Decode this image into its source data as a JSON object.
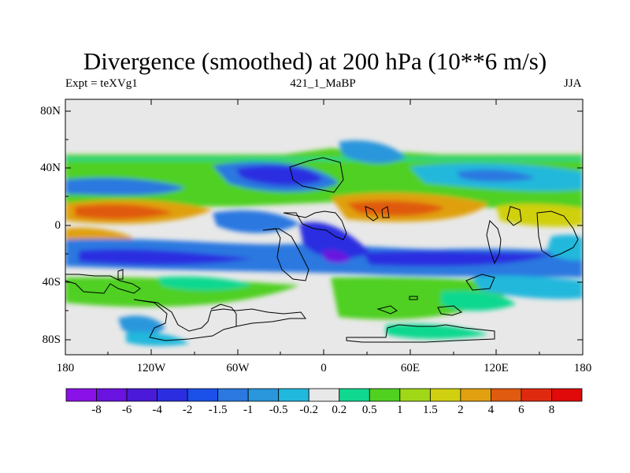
{
  "header": {
    "title": "Divergence (smoothed) at 200 hPa (10**6 m/s)",
    "left_label": "Expt = teXVg1",
    "center_label": "421_1_MaBP",
    "right_label": "JJA"
  },
  "map": {
    "lat_labels": [
      "80N",
      "40N",
      "0",
      "40S",
      "80S"
    ],
    "lon_labels": [
      "180",
      "120W",
      "60W",
      "0",
      "60E",
      "120E",
      "180"
    ]
  },
  "colorbar": {
    "labels": [
      "-8",
      "-6",
      "-4",
      "-2",
      "-1.5",
      "-1",
      "-0.5",
      "-0.2",
      "0.2",
      "0.5",
      "1",
      "1.5",
      "2",
      "4",
      "6",
      "8"
    ],
    "colors": [
      "#8a12e8",
      "#6a12e0",
      "#4a1ad8",
      "#2a2ee0",
      "#1a50e8",
      "#2a78e0",
      "#2a96dc",
      "#20b8dc",
      "#e8e8e8",
      "#10d890",
      "#50d020",
      "#a0d818",
      "#d0d010",
      "#e0a010",
      "#e05a10",
      "#e02a10",
      "#e00a0a"
    ]
  },
  "palette": {
    "background": "#e8e8e8",
    "coastline": "#000000"
  }
}
